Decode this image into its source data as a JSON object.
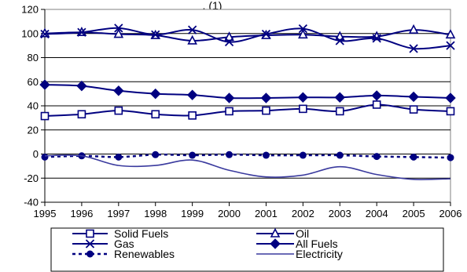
{
  "chart_data": {
    "type": "line",
    "title_visible": ", (1)",
    "xlabel": "",
    "ylabel": "",
    "x": [
      "1995",
      "1996",
      "1997",
      "1998",
      "1999",
      "2000",
      "2001",
      "2002",
      "2003",
      "2004",
      "2005",
      "2006"
    ],
    "ylim": [
      -40,
      120
    ],
    "yticks": [
      -40,
      -20,
      0,
      20,
      40,
      60,
      80,
      100,
      120
    ],
    "grid": "horizontal",
    "legend_position": "bottom",
    "series": [
      {
        "name": "Solid Fuels",
        "marker": "square-open",
        "line": "solid",
        "color": "#000080",
        "values": [
          31.5,
          33,
          36,
          33,
          32,
          35.5,
          36,
          37.5,
          35.5,
          41,
          37,
          35.5
        ]
      },
      {
        "name": "Oil",
        "marker": "triangle-open",
        "line": "solid",
        "color": "#000080",
        "values": [
          100,
          101,
          99.5,
          98.5,
          94,
          97,
          98.5,
          99,
          97.5,
          97.5,
          103,
          99
        ]
      },
      {
        "name": "Gas",
        "marker": "x",
        "line": "solid",
        "color": "#000080",
        "values": [
          99.5,
          101,
          104.5,
          99,
          103,
          93,
          99.5,
          104,
          94,
          96,
          87.5,
          90
        ]
      },
      {
        "name": "All Fuels",
        "marker": "diamond-filled",
        "line": "solid",
        "color": "#000080",
        "values": [
          57.5,
          56.5,
          52.5,
          50,
          49,
          46.5,
          46.5,
          47,
          47,
          48.5,
          47.5,
          46.5
        ]
      },
      {
        "name": "Renewables",
        "marker": "circle-filled",
        "line": "dotted",
        "color": "#000080",
        "values": [
          -2.5,
          -1.5,
          -2.5,
          -0.5,
          -1,
          -0.5,
          -1,
          -1,
          -1,
          -2,
          -2.5,
          -3
        ]
      },
      {
        "name": "Electricity",
        "marker": "none",
        "line": "solid-thin",
        "color": "#3a3a9e",
        "values": [
          -1.5,
          -1.5,
          -9.5,
          -9.5,
          -5,
          -13.5,
          -19,
          -17.5,
          -10.5,
          -17,
          -21,
          -20.5
        ]
      }
    ]
  }
}
